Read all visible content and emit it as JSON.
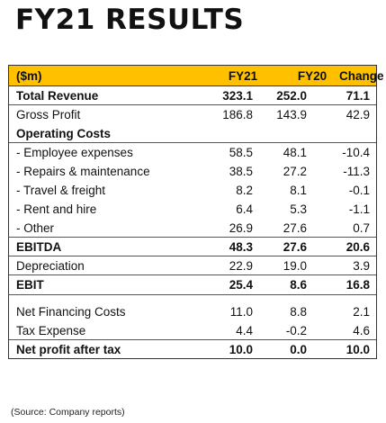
{
  "title": "FY21 RESULTS",
  "table": {
    "headers": [
      "($m)",
      "FY21",
      "FY20",
      "Change"
    ],
    "rows": [
      {
        "label": "Total Revenue",
        "fy21": "323.1",
        "fy20": "252.0",
        "change": "71.1"
      },
      {
        "label": "Gross Profit",
        "fy21": "186.8",
        "fy20": "143.9",
        "change": "42.9"
      },
      {
        "label": "Operating Costs",
        "fy21": "",
        "fy20": "",
        "change": ""
      },
      {
        "label": "- Employee expenses",
        "fy21": "58.5",
        "fy20": "48.1",
        "change": "-10.4"
      },
      {
        "label": "- Repairs & maintenance",
        "fy21": "38.5",
        "fy20": "27.2",
        "change": "-11.3"
      },
      {
        "label": "- Travel & freight",
        "fy21": "8.2",
        "fy20": "8.1",
        "change": "-0.1"
      },
      {
        "label": "- Rent and hire",
        "fy21": "6.4",
        "fy20": "5.3",
        "change": "-1.1"
      },
      {
        "label": "- Other",
        "fy21": "26.9",
        "fy20": "27.6",
        "change": "0.7"
      },
      {
        "label": "EBITDA",
        "fy21": "48.3",
        "fy20": "27.6",
        "change": "20.6"
      },
      {
        "label": "Depreciation",
        "fy21": "22.9",
        "fy20": "19.0",
        "change": "3.9"
      },
      {
        "label": "EBIT",
        "fy21": "25.4",
        "fy20": "8.6",
        "change": "16.8"
      },
      {
        "label": "Net Financing Costs",
        "fy21": "11.0",
        "fy20": "8.8",
        "change": "2.1"
      },
      {
        "label": "Tax Expense",
        "fy21": "4.4",
        "fy20": "-0.2",
        "change": "4.6"
      },
      {
        "label": "Net profit after tax",
        "fy21": "10.0",
        "fy20": "0.0",
        "change": "10.0"
      }
    ]
  },
  "source": "(Source: Company reports)"
}
